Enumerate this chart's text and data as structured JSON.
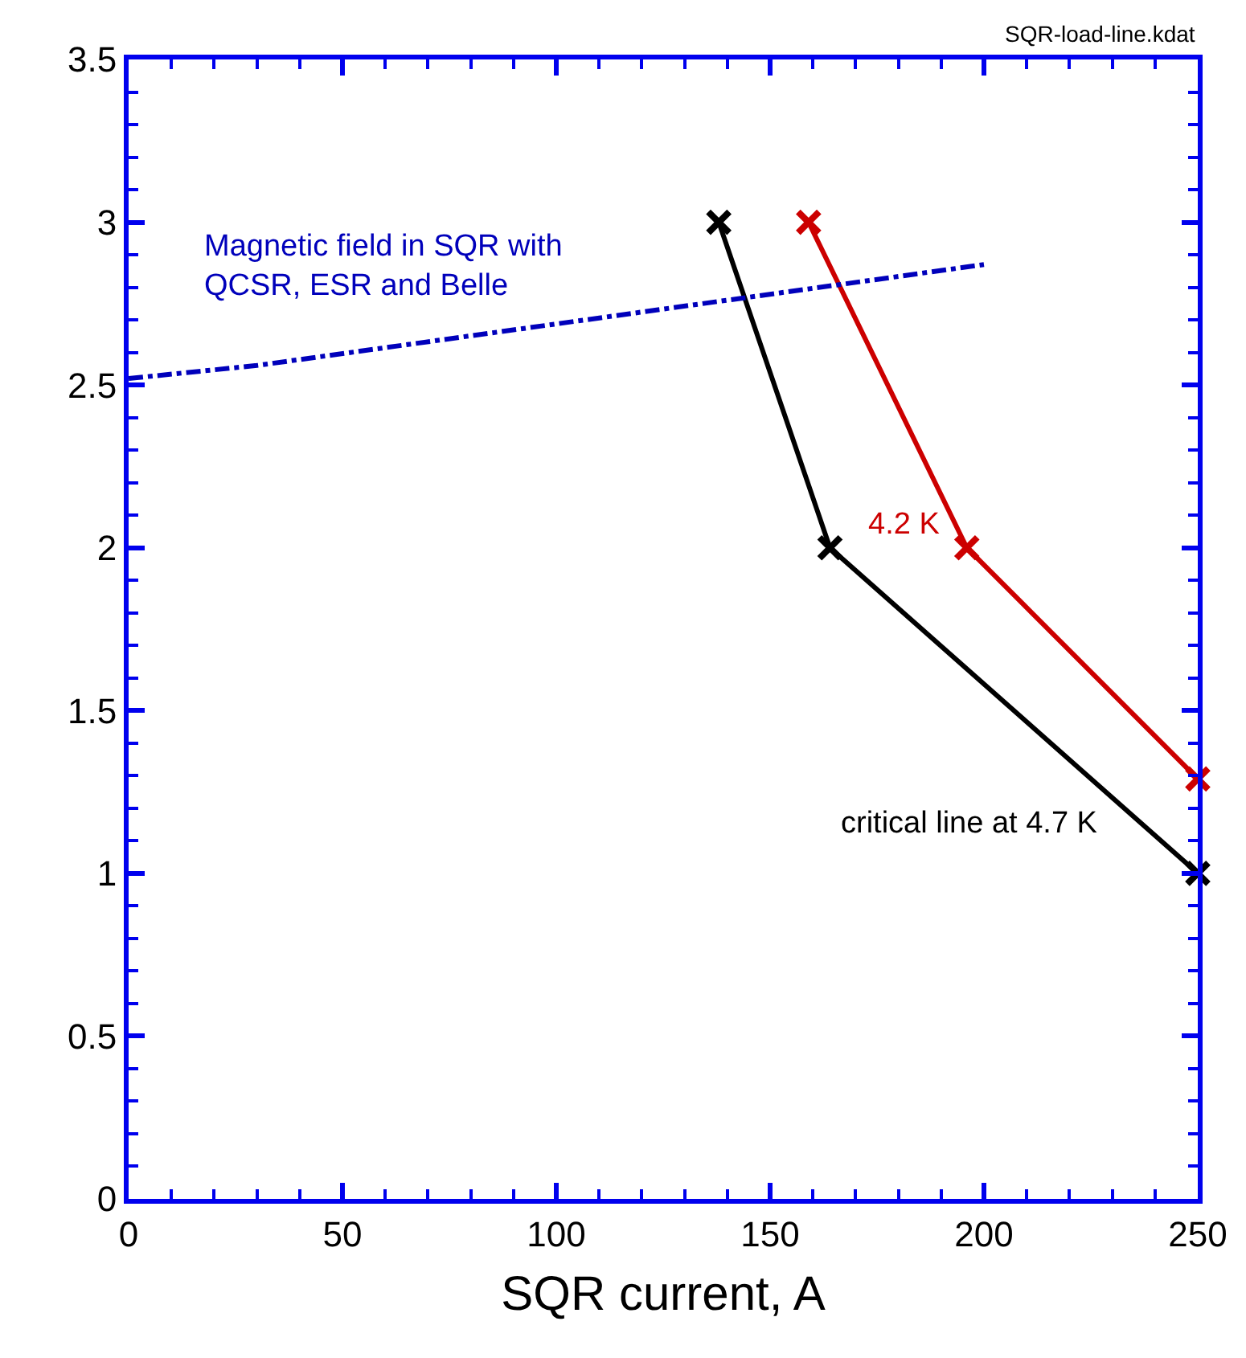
{
  "chart_data": {
    "type": "line",
    "xlabel": "SQR current, A",
    "xlim": [
      0,
      250
    ],
    "xticks": [
      0,
      50,
      100,
      150,
      200,
      250
    ],
    "ylim": [
      0,
      3.5
    ],
    "yticks": [
      0,
      0.5,
      1,
      1.5,
      2,
      2.5,
      3,
      3.5
    ],
    "legend": false,
    "series": [
      {
        "name": "critical line at 4.7 K",
        "color": "#000000",
        "x": [
          138,
          164,
          250
        ],
        "values": [
          3,
          2,
          1
        ],
        "marker": "cross",
        "line_style": "solid"
      },
      {
        "name": "4.2 K",
        "color": "#cc0000",
        "x": [
          159,
          196,
          250
        ],
        "values": [
          3,
          2,
          1.29
        ],
        "marker": "cross",
        "line_style": "solid"
      },
      {
        "name": "Magnetic field in SQR with\nQCSR, ESR and Belle",
        "color": "#0000bb",
        "x": [
          0,
          30,
          200
        ],
        "values": [
          2.52,
          2.56,
          2.87
        ],
        "marker": "none",
        "line_style": "dashed"
      }
    ],
    "annotations": [
      "SQR-load-line.kdat"
    ]
  }
}
